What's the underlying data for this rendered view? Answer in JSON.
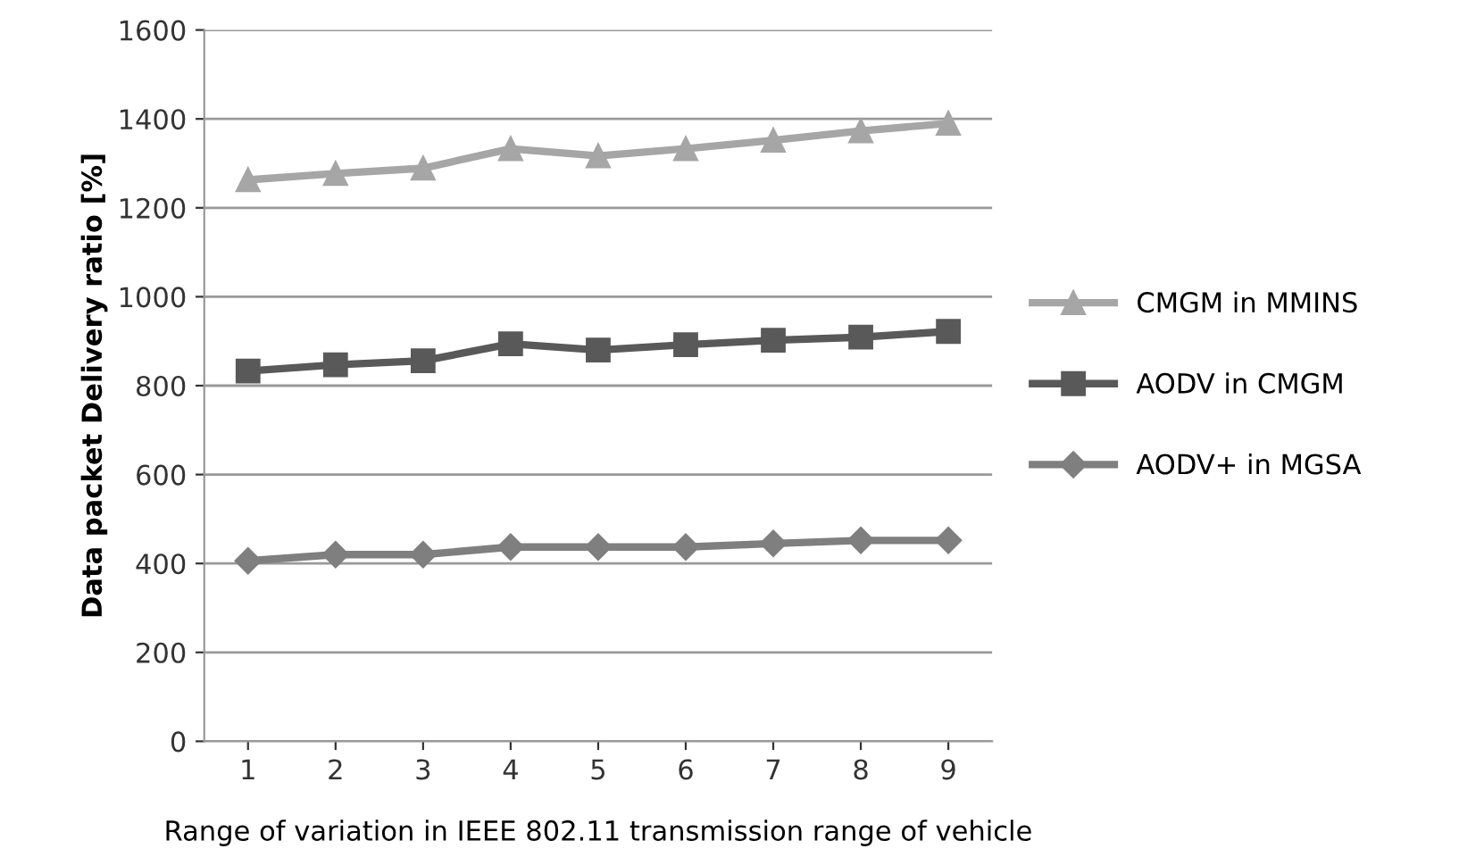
{
  "chart_data": {
    "type": "line",
    "xlabel": "Range of variation in IEEE 802.11 transmission range of vehicle",
    "ylabel": "Data packet Delivery ratio [%]",
    "categories": [
      "1",
      "2",
      "3",
      "4",
      "5",
      "6",
      "7",
      "8",
      "9"
    ],
    "series": [
      {
        "name": "CMGM in MMINS",
        "color": "#a6a6a6",
        "marker": "triangle",
        "values": [
          1263,
          1277,
          1289,
          1333,
          1317,
          1333,
          1352,
          1373,
          1390
        ]
      },
      {
        "name": "AODV in CMGM",
        "color": "#595959",
        "marker": "square",
        "values": [
          833,
          847,
          856,
          894,
          880,
          892,
          902,
          909,
          922
        ]
      },
      {
        "name": "AODV+ in MGSA",
        "color": "#7f7f7f",
        "marker": "diamond",
        "values": [
          406,
          420,
          420,
          437,
          437,
          437,
          445,
          452,
          452
        ]
      }
    ],
    "ylim": [
      0,
      1600
    ],
    "yticks": [
      0,
      200,
      400,
      600,
      800,
      1000,
      1200,
      1400,
      1600
    ],
    "grid": "y",
    "legend": "right",
    "line_style": "solid"
  }
}
